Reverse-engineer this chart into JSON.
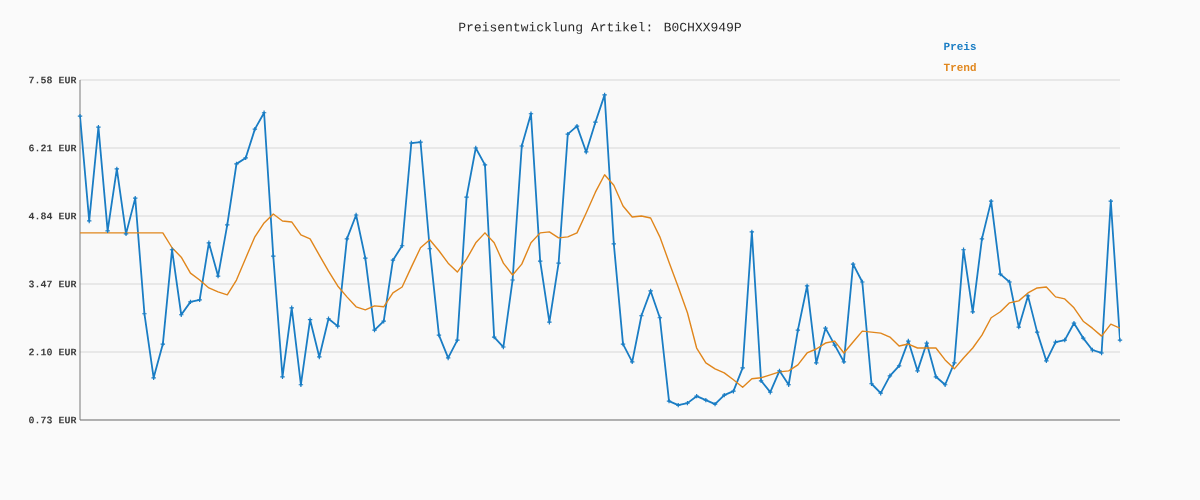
{
  "chart_data": {
    "type": "line",
    "title": "Preisentwicklung Artikel: B0CHXX949P",
    "categories": [
      null,
      null,
      null,
      null,
      null,
      null,
      null,
      null,
      null,
      null,
      null,
      null,
      null,
      null,
      null,
      null,
      null,
      null,
      null,
      null,
      null,
      null,
      null,
      null,
      null,
      null,
      null,
      null,
      null,
      null,
      null,
      null,
      null,
      null,
      null,
      null,
      null,
      null,
      null,
      null,
      null,
      null,
      null,
      null,
      null,
      null,
      null,
      null,
      null,
      null,
      null,
      null,
      null,
      null,
      null,
      null,
      null,
      null,
      null,
      null,
      null,
      null,
      null,
      null,
      null,
      null,
      null,
      null,
      null,
      null,
      null,
      null,
      null,
      null,
      null,
      null,
      null,
      null,
      null,
      null,
      null,
      null,
      null,
      null,
      null,
      null,
      null,
      null,
      null,
      null,
      null,
      null,
      null,
      null,
      null,
      null,
      null,
      null,
      null,
      null,
      null,
      null,
      null,
      null,
      null,
      null,
      null,
      null,
      null,
      null,
      null,
      null,
      null,
      null
    ],
    "series": [
      {
        "name": "Preis",
        "color": "#1a7dc4",
        "marker": "cross",
        "values": [
          6.85,
          4.74,
          6.63,
          4.54,
          5.79,
          4.48,
          5.2,
          2.87,
          1.58,
          2.26,
          4.16,
          2.85,
          3.11,
          3.15,
          4.3,
          3.63,
          4.66,
          5.89,
          6.01,
          6.59,
          6.92,
          4.03,
          1.6,
          2.99,
          1.44,
          2.75,
          2.0,
          2.77,
          2.62,
          4.38,
          4.86,
          3.99,
          2.54,
          2.72,
          3.95,
          4.24,
          6.31,
          6.33,
          4.18,
          2.44,
          1.98,
          2.34,
          5.22,
          6.21,
          5.87,
          2.4,
          2.2,
          3.55,
          6.25,
          6.9,
          3.93,
          2.7,
          3.89,
          6.49,
          6.65,
          6.13,
          6.73,
          7.28,
          4.28,
          2.26,
          1.9,
          2.83,
          3.33,
          2.79,
          1.11,
          1.03,
          1.07,
          1.21,
          1.13,
          1.05,
          1.23,
          1.31,
          1.78,
          4.52,
          1.52,
          1.29,
          1.72,
          1.44,
          2.54,
          3.43,
          1.88,
          2.58,
          2.24,
          1.9,
          3.87,
          3.51,
          1.46,
          1.27,
          1.62,
          1.82,
          2.32,
          1.72,
          2.28,
          1.6,
          1.44,
          1.88,
          4.16,
          2.91,
          4.38,
          5.14,
          3.67,
          3.51,
          2.6,
          3.23,
          2.5,
          1.92,
          2.3,
          2.34,
          2.68,
          2.38,
          2.14,
          2.08,
          5.14,
          2.34
        ]
      },
      {
        "name": "Trend",
        "color": "#e0861c",
        "marker": "none",
        "values": [
          4.5,
          4.5,
          4.5,
          4.5,
          4.5,
          4.5,
          4.5,
          4.5,
          4.5,
          4.5,
          4.2,
          4.01,
          3.69,
          3.55,
          3.39,
          3.31,
          3.25,
          3.55,
          3.99,
          4.42,
          4.7,
          4.88,
          4.74,
          4.72,
          4.46,
          4.38,
          4.05,
          3.73,
          3.43,
          3.21,
          3.01,
          2.95,
          3.03,
          3.01,
          3.29,
          3.41,
          3.81,
          4.2,
          4.36,
          4.14,
          3.89,
          3.71,
          3.97,
          4.3,
          4.5,
          4.3,
          3.89,
          3.65,
          3.87,
          4.3,
          4.5,
          4.52,
          4.4,
          4.42,
          4.5,
          4.9,
          5.32,
          5.67,
          5.46,
          5.04,
          4.82,
          4.84,
          4.8,
          4.42,
          3.91,
          3.41,
          2.89,
          2.18,
          1.88,
          1.76,
          1.68,
          1.54,
          1.39,
          1.56,
          1.58,
          1.64,
          1.7,
          1.72,
          1.84,
          2.08,
          2.16,
          2.28,
          2.32,
          2.08,
          2.3,
          2.52,
          2.5,
          2.48,
          2.4,
          2.22,
          2.26,
          2.18,
          2.18,
          2.18,
          1.94,
          1.76,
          1.98,
          2.18,
          2.44,
          2.79,
          2.91,
          3.09,
          3.13,
          3.29,
          3.39,
          3.41,
          3.21,
          3.17,
          2.99,
          2.72,
          2.58,
          2.42,
          2.66,
          2.58
        ]
      }
    ],
    "ylim": [
      0.73,
      7.58
    ],
    "yticks": [
      {
        "value": 0.73,
        "label": "0.73 EUR"
      },
      {
        "value": 2.1,
        "label": "2.10 EUR"
      },
      {
        "value": 3.47,
        "label": "3.47 EUR"
      },
      {
        "value": 4.84,
        "label": "4.84 EUR"
      },
      {
        "value": 6.21,
        "label": "6.21 EUR"
      },
      {
        "value": 7.58,
        "label": "7.58 EUR"
      }
    ],
    "grid": "y",
    "legend": "top right",
    "tick_labels": "y"
  }
}
